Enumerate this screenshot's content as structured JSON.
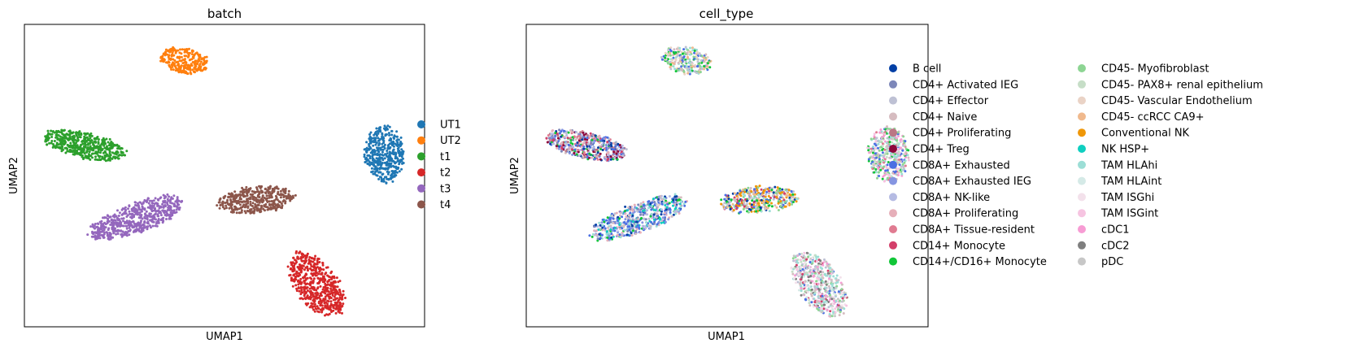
{
  "chart_data": [
    {
      "type": "scatter",
      "title": "batch",
      "xlabel": "UMAP1",
      "ylabel": "UMAP2",
      "grid": false,
      "legend_position": "right",
      "legend": [
        {
          "name": "UT1",
          "color": "#1f77b4"
        },
        {
          "name": "UT2",
          "color": "#ff7f0e"
        },
        {
          "name": "t1",
          "color": "#2ca02c"
        },
        {
          "name": "t2",
          "color": "#d62728"
        },
        {
          "name": "t3",
          "color": "#9467bd"
        },
        {
          "name": "t4",
          "color": "#8c564b"
        }
      ],
      "clusters": [
        {
          "series": "UT2",
          "cx": 0.4,
          "cy": 0.88,
          "rx": 0.07,
          "ry": 0.13,
          "angle": 80,
          "n": 260
        },
        {
          "series": "t1",
          "cx": 0.15,
          "cy": 0.6,
          "rx": 0.22,
          "ry": 0.07,
          "angle": -12,
          "n": 500
        },
        {
          "series": "UT1",
          "cx": 0.9,
          "cy": 0.57,
          "rx": 0.11,
          "ry": 0.15,
          "angle": 5,
          "n": 420
        },
        {
          "series": "t3",
          "cx": 0.28,
          "cy": 0.36,
          "rx": 0.27,
          "ry": 0.08,
          "angle": 20,
          "n": 580
        },
        {
          "series": "t4",
          "cx": 0.58,
          "cy": 0.42,
          "rx": 0.21,
          "ry": 0.07,
          "angle": 5,
          "n": 400
        },
        {
          "series": "t2",
          "cx": 0.73,
          "cy": 0.14,
          "rx": 0.2,
          "ry": 0.11,
          "angle": -52,
          "n": 560
        }
      ]
    },
    {
      "type": "scatter",
      "title": "cell_type",
      "xlabel": "UMAP1",
      "ylabel": "UMAP2",
      "grid": false,
      "legend_position": "right",
      "legend_columns": 2,
      "legend": [
        {
          "name": "B cell",
          "color": "#023fa5"
        },
        {
          "name": "CD4+ Activated IEG",
          "color": "#7d87b9"
        },
        {
          "name": "CD4+ Effector",
          "color": "#bec1d4"
        },
        {
          "name": "CD4+ Naive",
          "color": "#d6bcc0"
        },
        {
          "name": "CD4+ Proliferating",
          "color": "#bb7784"
        },
        {
          "name": "CD4+ Treg",
          "color": "#8e063b"
        },
        {
          "name": "CD8A+ Exhausted",
          "color": "#4a6fe3"
        },
        {
          "name": "CD8A+ Exhausted IEG",
          "color": "#8595e1"
        },
        {
          "name": "CD8A+ NK-like",
          "color": "#b5bbe3"
        },
        {
          "name": "CD8A+ Proliferating",
          "color": "#e6afb9"
        },
        {
          "name": "CD8A+ Tissue-resident",
          "color": "#e07b91"
        },
        {
          "name": "CD14+ Monocyte",
          "color": "#d33f6a"
        },
        {
          "name": "CD14+/CD16+ Monocyte",
          "color": "#11c638"
        },
        {
          "name": "CD45- Myofibroblast",
          "color": "#8dd593"
        },
        {
          "name": "CD45- PAX8+ renal epithelium",
          "color": "#c6dec7"
        },
        {
          "name": "CD45- Vascular Endothelium",
          "color": "#ead3c6"
        },
        {
          "name": "CD45- ccRCC CA9+",
          "color": "#f0b98d"
        },
        {
          "name": "Conventional NK",
          "color": "#ef9708"
        },
        {
          "name": "NK HSP+",
          "color": "#0fcfc0"
        },
        {
          "name": "TAM HLAhi",
          "color": "#9cded6"
        },
        {
          "name": "TAM HLAint",
          "color": "#d5eae7"
        },
        {
          "name": "TAM ISGhi",
          "color": "#f3e1eb"
        },
        {
          "name": "TAM ISGint",
          "color": "#f6c4e1"
        },
        {
          "name": "cDC1",
          "color": "#f79cd4"
        },
        {
          "name": "cDC2",
          "color": "#7f7f7f"
        },
        {
          "name": "pDC",
          "color": "#c7c7c7"
        }
      ]
    }
  ]
}
